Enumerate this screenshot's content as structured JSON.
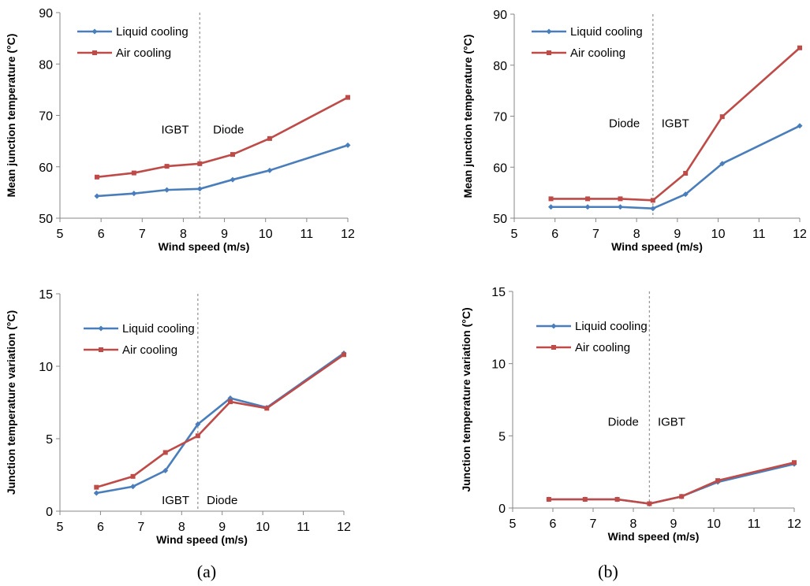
{
  "colors": {
    "liquid": "#4a7ebb",
    "air": "#be4b48",
    "divider": "#9a9a9a",
    "axis": "#878787"
  },
  "captions": [
    "(a)",
    "(b)"
  ],
  "chart_data": [
    {
      "type": "line",
      "xlabel": "Wind speed (m/s)",
      "ylabel": "Mean junction temperature (°C)",
      "xlim": [
        5,
        12
      ],
      "ylim": [
        50,
        90
      ],
      "xticks": [
        5,
        6,
        7,
        8,
        9,
        10,
        11,
        12
      ],
      "yticks": [
        50,
        60,
        70,
        80,
        90
      ],
      "x": [
        5.9,
        6.8,
        7.6,
        8.4,
        9.2,
        10.1,
        12
      ],
      "series": [
        {
          "name": "Liquid cooling",
          "marker": "diamond",
          "values": [
            54.3,
            54.8,
            55.5,
            55.7,
            57.5,
            59.3,
            64.2
          ]
        },
        {
          "name": "Air cooling",
          "marker": "square",
          "values": [
            58.0,
            58.8,
            60.1,
            60.6,
            62.4,
            65.5,
            73.5
          ]
        }
      ],
      "divider_x": 8.4,
      "annotations": [
        {
          "text": "IGBT",
          "x": 7.8,
          "y": 66.5
        },
        {
          "text": "Diode",
          "x": 9.1,
          "y": 66.5
        }
      ],
      "legend_position": "top-left",
      "grid": false
    },
    {
      "type": "line",
      "xlabel": "Wind speed (m/s)",
      "ylabel": "Mean junction temperature (°C)",
      "xlim": [
        5,
        12
      ],
      "ylim": [
        50,
        90
      ],
      "xticks": [
        5,
        6,
        7,
        8,
        9,
        10,
        11,
        12
      ],
      "yticks": [
        50,
        60,
        70,
        80,
        90
      ],
      "x": [
        5.9,
        6.8,
        7.6,
        8.4,
        9.2,
        10.1,
        12
      ],
      "series": [
        {
          "name": "Liquid cooling",
          "marker": "diamond",
          "values": [
            52.2,
            52.2,
            52.2,
            51.9,
            54.7,
            60.7,
            68.1
          ]
        },
        {
          "name": "Air cooling",
          "marker": "square",
          "values": [
            53.8,
            53.8,
            53.8,
            53.5,
            58.8,
            69.9,
            83.4
          ]
        }
      ],
      "divider_x": 8.4,
      "annotations": [
        {
          "text": "Diode",
          "x": 7.7,
          "y": 67.8
        },
        {
          "text": "IGBT",
          "x": 8.95,
          "y": 67.8
        }
      ],
      "legend_position": "top-left",
      "grid": false
    },
    {
      "type": "line",
      "xlabel": "Wind speed (m/s)",
      "ylabel": "Junction temperature variation (°C)",
      "xlim": [
        5,
        12
      ],
      "ylim": [
        0,
        15
      ],
      "xticks": [
        5,
        6,
        7,
        8,
        9,
        10,
        11,
        12
      ],
      "yticks": [
        0,
        5,
        10,
        15
      ],
      "x": [
        5.9,
        6.8,
        7.6,
        8.4,
        9.2,
        10.1,
        12
      ],
      "series": [
        {
          "name": "Liquid cooling",
          "marker": "diamond",
          "values": [
            1.25,
            1.7,
            2.8,
            6.0,
            7.8,
            7.15,
            10.9
          ]
        },
        {
          "name": "Air cooling",
          "marker": "square",
          "values": [
            1.65,
            2.4,
            4.05,
            5.2,
            7.55,
            7.1,
            10.8
          ]
        }
      ],
      "divider_x": 8.4,
      "annotations": [
        {
          "text": "IGBT",
          "x": 7.85,
          "y": 0.5
        },
        {
          "text": "Diode",
          "x": 9.0,
          "y": 0.5
        }
      ],
      "legend_position": "top-left",
      "grid": false
    },
    {
      "type": "line",
      "xlabel": "Wind speed (m/s)",
      "ylabel": "Junction temperature variation (°C)",
      "xlim": [
        5,
        12
      ],
      "ylim": [
        0,
        15
      ],
      "xticks": [
        5,
        6,
        7,
        8,
        9,
        10,
        11,
        12
      ],
      "yticks": [
        0,
        5,
        10,
        15
      ],
      "x": [
        5.9,
        6.8,
        7.6,
        8.4,
        9.2,
        10.1,
        12
      ],
      "series": [
        {
          "name": "Liquid cooling",
          "marker": "diamond",
          "values": [
            0.6,
            0.6,
            0.6,
            0.3,
            0.8,
            1.8,
            3.05
          ]
        },
        {
          "name": "Air cooling",
          "marker": "square",
          "values": [
            0.6,
            0.6,
            0.6,
            0.3,
            0.8,
            1.9,
            3.15
          ]
        }
      ],
      "divider_x": 8.4,
      "annotations": [
        {
          "text": "Diode",
          "x": 7.75,
          "y": 5.7
        },
        {
          "text": "IGBT",
          "x": 8.95,
          "y": 5.7
        }
      ],
      "legend_position": "top-left",
      "grid": false
    }
  ]
}
